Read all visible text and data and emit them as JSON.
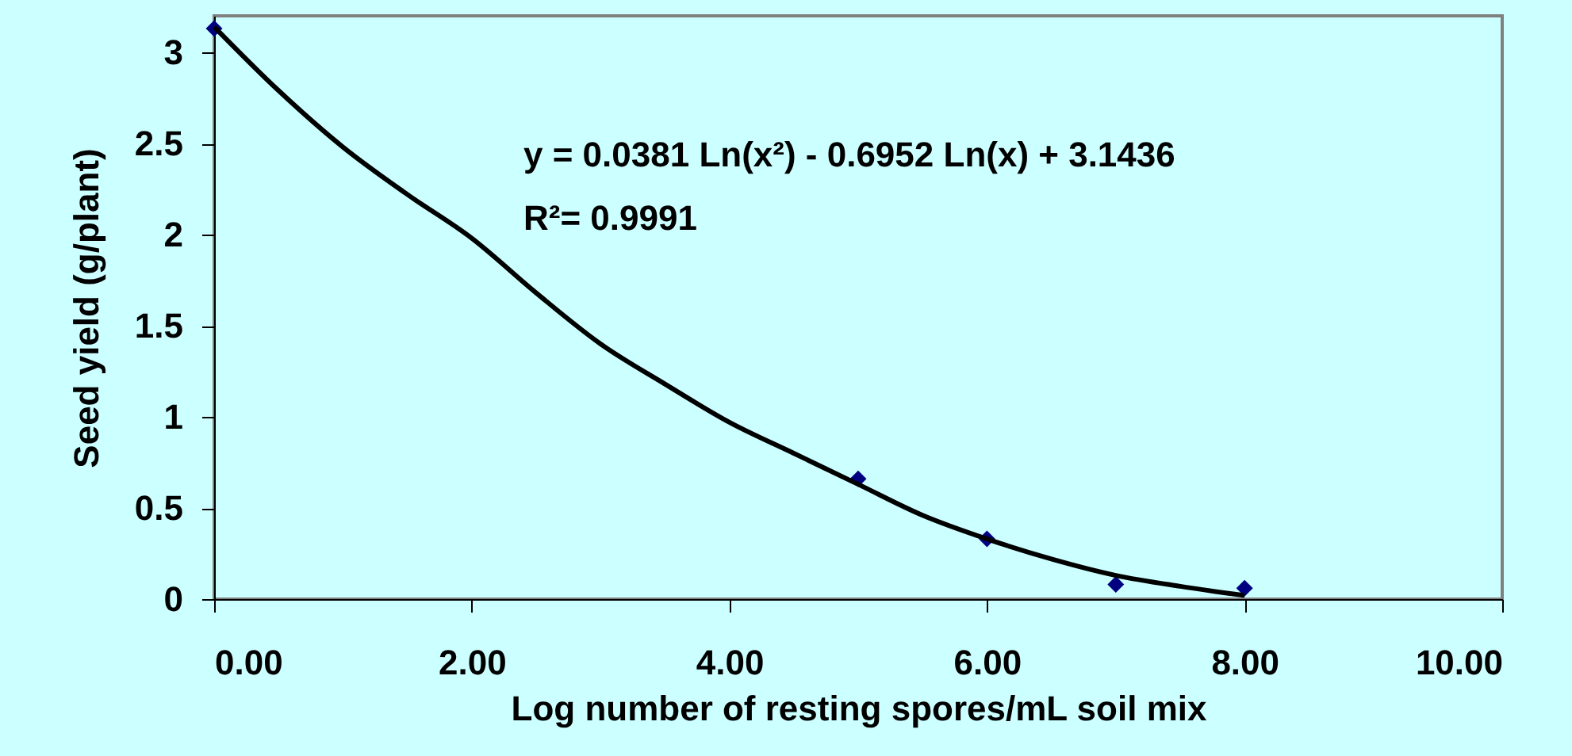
{
  "chart_data": {
    "type": "scatter",
    "xlabel": "Log number of resting spores/mL soil mix",
    "ylabel": "Seed yield (g/plant)",
    "annotations": [
      "y = 0.0381 Ln(x²) - 0.6952 Ln(x) + 3.1436",
      "R²= 0.9991"
    ],
    "series": [
      {
        "color": "#000080",
        "marker": "diamond",
        "x": [
          0,
          5,
          6,
          7,
          8
        ],
        "values": [
          3.13,
          0.66,
          0.33,
          0.08,
          0.06
        ]
      },
      {
        "type": "line",
        "color": "#000000",
        "line_style": "solid",
        "x": [
          0,
          0.5,
          1,
          1.5,
          2,
          2.5,
          3,
          3.5,
          4,
          4.5,
          5,
          5.5,
          6,
          6.5,
          7,
          7.5,
          8
        ],
        "values": [
          3.14,
          2.79,
          2.48,
          2.22,
          1.98,
          1.68,
          1.4,
          1.18,
          0.97,
          0.8,
          0.63,
          0.46,
          0.33,
          0.22,
          0.13,
          0.07,
          0.02
        ]
      }
    ],
    "xlim": [
      0,
      10
    ],
    "xticks": [
      {
        "value": 0,
        "label": "0.00"
      },
      {
        "value": 2,
        "label": "2.00"
      },
      {
        "value": 4,
        "label": "4.00"
      },
      {
        "value": 6,
        "label": "6.00"
      },
      {
        "value": 8,
        "label": "8.00"
      },
      {
        "value": 10,
        "label": "10.00"
      }
    ],
    "ylim": [
      0,
      3.2
    ],
    "yticks": [
      0,
      0.5,
      1,
      1.5,
      2,
      2.5,
      3
    ],
    "grid": false
  }
}
